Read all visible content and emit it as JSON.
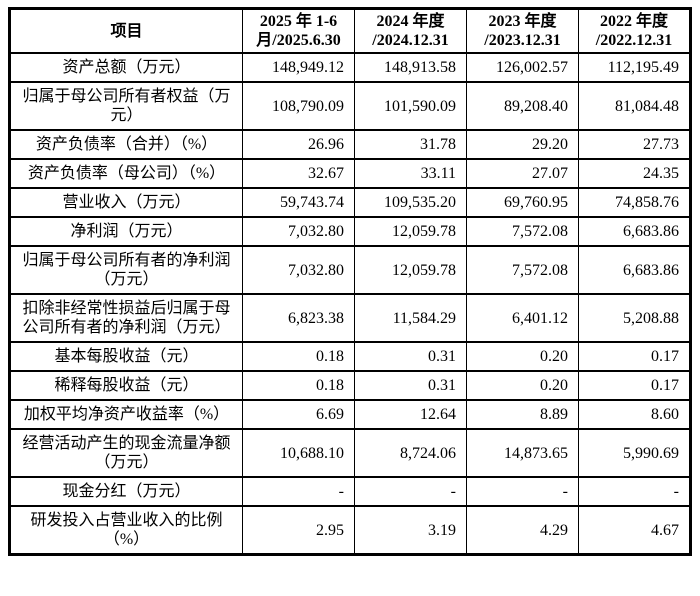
{
  "colors": {
    "border": "#000000",
    "text": "#000000",
    "background": "#ffffff"
  },
  "table": {
    "columns": [
      {
        "line1": "项目",
        "line2": ""
      },
      {
        "line1": "2025 年 1-6",
        "line2": "月/2025.6.30"
      },
      {
        "line1": "2024 年度",
        "line2": "/2024.12.31"
      },
      {
        "line1": "2023 年度",
        "line2": "/2023.12.31"
      },
      {
        "line1": "2022 年度",
        "line2": "/2022.12.31"
      }
    ],
    "rows": [
      {
        "label": "资产总额（万元）",
        "values": [
          "148,949.12",
          "148,913.58",
          "126,002.57",
          "112,195.49"
        ]
      },
      {
        "label": "归属于母公司所有者权益（万元）",
        "values": [
          "108,790.09",
          "101,590.09",
          "89,208.40",
          "81,084.48"
        ]
      },
      {
        "label": "资产负债率（合并）（%）",
        "values": [
          "26.96",
          "31.78",
          "29.20",
          "27.73"
        ]
      },
      {
        "label": "资产负债率（母公司）（%）",
        "values": [
          "32.67",
          "33.11",
          "27.07",
          "24.35"
        ]
      },
      {
        "label": "营业收入（万元）",
        "values": [
          "59,743.74",
          "109,535.20",
          "69,760.95",
          "74,858.76"
        ]
      },
      {
        "label": "净利润（万元）",
        "values": [
          "7,032.80",
          "12,059.78",
          "7,572.08",
          "6,683.86"
        ]
      },
      {
        "label": "归属于母公司所有者的净利润（万元）",
        "values": [
          "7,032.80",
          "12,059.78",
          "7,572.08",
          "6,683.86"
        ]
      },
      {
        "label": "扣除非经常性损益后归属于母公司所有者的净利润（万元）",
        "values": [
          "6,823.38",
          "11,584.29",
          "6,401.12",
          "5,208.88"
        ]
      },
      {
        "label": "基本每股收益（元）",
        "values": [
          "0.18",
          "0.31",
          "0.20",
          "0.17"
        ]
      },
      {
        "label": "稀释每股收益（元）",
        "values": [
          "0.18",
          "0.31",
          "0.20",
          "0.17"
        ]
      },
      {
        "label": "加权平均净资产收益率（%）",
        "values": [
          "6.69",
          "12.64",
          "8.89",
          "8.60"
        ]
      },
      {
        "label": "经营活动产生的现金流量净额（万元）",
        "values": [
          "10,688.10",
          "8,724.06",
          "14,873.65",
          "5,990.69"
        ]
      },
      {
        "label": "现金分红（万元）",
        "values": [
          "-",
          "-",
          "-",
          "-"
        ]
      },
      {
        "label": "研发投入占营业收入的比例（%）",
        "values": [
          "2.95",
          "3.19",
          "4.29",
          "4.67"
        ]
      }
    ]
  }
}
